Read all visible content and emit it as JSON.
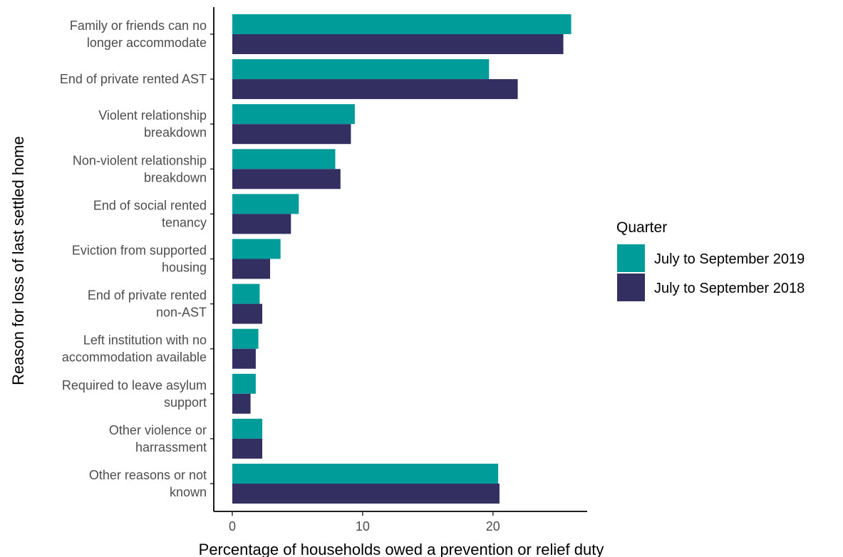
{
  "chart_data": {
    "type": "bar",
    "orientation": "horizontal",
    "xlabel": "Percentage of households owed a prevention or relief duty",
    "ylabel": "Reason for loss of last settled home",
    "xlim": [
      0,
      27
    ],
    "xticks": [
      0,
      10,
      20
    ],
    "grid": false,
    "legend": {
      "title": "Quarter",
      "placement": "right"
    },
    "categories": [
      [
        "Family or friends can no",
        "longer accommodate"
      ],
      [
        "End of private rented AST"
      ],
      [
        "Violent relationship",
        "breakdown"
      ],
      [
        "Non-violent relationship",
        "breakdown"
      ],
      [
        "End of social rented",
        "tenancy"
      ],
      [
        "Eviction from supported",
        "housing"
      ],
      [
        "End of private rented",
        "non-AST"
      ],
      [
        "Left institution with no",
        "accommodation available"
      ],
      [
        "Required to leave asylum",
        "support"
      ],
      [
        "Other violence or",
        "harrassment"
      ],
      [
        "Other reasons or not",
        "known"
      ]
    ],
    "series": [
      {
        "name": "July to September 2019",
        "color": "#009c9a",
        "values": [
          26.0,
          19.7,
          9.4,
          7.9,
          5.1,
          3.7,
          2.1,
          2.0,
          1.8,
          2.3,
          20.4
        ]
      },
      {
        "name": "July to September 2018",
        "color": "#332f61",
        "values": [
          25.4,
          21.9,
          9.1,
          8.3,
          4.5,
          2.9,
          2.3,
          1.8,
          1.4,
          2.3,
          20.5
        ]
      }
    ]
  }
}
